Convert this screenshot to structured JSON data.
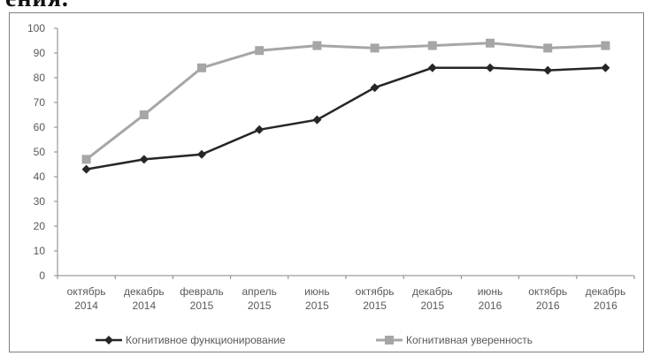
{
  "page": {
    "top_text": "ения."
  },
  "chart_data": {
    "type": "line",
    "categories": [
      [
        "октябрь",
        "2014"
      ],
      [
        "декабрь",
        "2014"
      ],
      [
        "февраль",
        "2015"
      ],
      [
        "апрель",
        "2015"
      ],
      [
        "июнь",
        "2015"
      ],
      [
        "октябрь",
        "2015"
      ],
      [
        "декабрь",
        "2015"
      ],
      [
        "июнь",
        "2016"
      ],
      [
        "октябрь",
        "2016"
      ],
      [
        "декабрь",
        "2016"
      ]
    ],
    "ylim": [
      0,
      100
    ],
    "yticks": [
      0,
      10,
      20,
      30,
      40,
      50,
      60,
      70,
      80,
      90,
      100
    ],
    "grid": false,
    "legend_position": "bottom",
    "series": [
      {
        "name": "Когнитивное функционирование",
        "values": [
          43,
          47,
          49,
          59,
          63,
          76,
          84,
          84,
          83,
          84
        ],
        "color": "#262626",
        "marker": "diamond"
      },
      {
        "name": "Когнитивная уверенность",
        "values": [
          47,
          65,
          84,
          91,
          93,
          92,
          93,
          94,
          92,
          93
        ],
        "color": "#a6a6a6",
        "marker": "square"
      }
    ]
  }
}
